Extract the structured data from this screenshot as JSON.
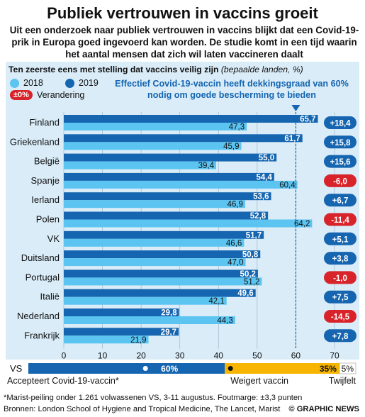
{
  "header": {
    "title": "Publiek vertrouwen in vaccins groeit",
    "subtitle": "Uit een onderzoek naar publiek vertrouwen in vaccins blijkt dat een Covid-19-prik in Europa goed ingevoerd kan worden. De studie komt in een tijd waarin het aantal mensen dat zich wil laten vaccineren daalt"
  },
  "question": {
    "main": "Ten zeerste eens met stelling dat vaccins veilig zijn",
    "note": "(bepaalde landen, %)"
  },
  "legend": {
    "y2018": "2018",
    "y2019": "2019",
    "change_symbol": "±0%",
    "change_label": "Verandering"
  },
  "annotation": "Effectief Covid-19-vaccin heeft dekkingsgraad van 60% nodig om goede bescherming te bieden",
  "colors": {
    "y2018": "#5bc4f1",
    "y2019": "#1565b0",
    "positive": "#1565b0",
    "negative": "#d8232a",
    "undecided": "#f7b500",
    "panel": "#d9ecf8"
  },
  "chart_data": {
    "type": "bar",
    "orientation": "horizontal",
    "categories": [
      "Finland",
      "Griekenland",
      "België",
      "Spanje",
      "Ierland",
      "Polen",
      "VK",
      "Duitsland",
      "Portugal",
      "Italië",
      "Nederland",
      "Frankrijk"
    ],
    "series": [
      {
        "name": "2018",
        "values": [
          47.3,
          45.9,
          39.4,
          60.4,
          46.9,
          64.2,
          46.6,
          47.0,
          51.2,
          42.1,
          44.3,
          21.9
        ]
      },
      {
        "name": "2019",
        "values": [
          65.7,
          61.7,
          55.0,
          54.4,
          53.6,
          52.8,
          51.7,
          50.8,
          50.2,
          49.6,
          29.8,
          29.7
        ]
      }
    ],
    "labels_2018": [
      "47,3",
      "45,9",
      "39,4",
      "60,4",
      "46,9",
      "64,2",
      "46,6",
      "47,0",
      "51,2",
      "42,1",
      "44,3",
      "21,9"
    ],
    "labels_2019": [
      "65,7",
      "61,7",
      "55,0",
      "54,4",
      "53,6",
      "52,8",
      "51,7",
      "50,8",
      "50,2",
      "49,6",
      "29,8",
      "29,7"
    ],
    "change_values": [
      18.4,
      15.8,
      15.6,
      -6.0,
      6.7,
      -11.4,
      5.1,
      3.8,
      -1.0,
      7.5,
      -14.5,
      7.8
    ],
    "change_labels": [
      "+18,4",
      "+15,8",
      "+15,6",
      "-6,0",
      "+6,7",
      "-11,4",
      "+5,1",
      "+3,8",
      "-1,0",
      "+7,5",
      "-14,5",
      "+7,8"
    ],
    "xlim": [
      0,
      70
    ],
    "xticks": [
      0,
      10,
      20,
      30,
      40,
      50,
      60,
      70
    ],
    "threshold": 60
  },
  "vs_survey": {
    "label": "VS",
    "accept": {
      "value": 60,
      "label": "60%",
      "caption": "Accepteert Covid-19-vaccin*"
    },
    "refuse": {
      "value": 35,
      "label": "35%",
      "caption": "Weigert vaccin"
    },
    "undecided": {
      "value": 5,
      "label": "5%",
      "caption": "Twijfelt"
    }
  },
  "footer": {
    "note": "*Marist-peiling onder 1.261 volwassenen VS, 3-11 augustus. Foutmarge: ±3,3 punten",
    "sources": "Bronnen: London School of Hygiene and Tropical Medicine, The Lancet, Marist",
    "credit": "© GRAPHIC NEWS"
  }
}
